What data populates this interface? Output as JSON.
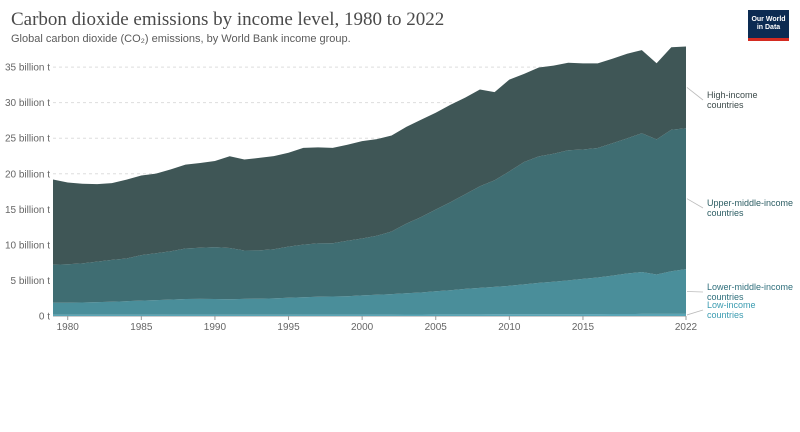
{
  "header": {
    "title": "Carbon dioxide emissions by income level, 1980 to 2022",
    "subtitle": "Global carbon dioxide (CO₂) emissions, by World Bank income group.",
    "logo_text": "Our World in Data",
    "logo_colors": {
      "background": "#0c2b52",
      "accent": "#d42b21"
    }
  },
  "chart_data": {
    "type": "area",
    "stacked": true,
    "x_range": [
      1979,
      2022
    ],
    "x_tick_labels": [
      "1980",
      "1985",
      "1990",
      "1995",
      "2000",
      "2005",
      "2010",
      "2015",
      "2022"
    ],
    "y_range": [
      0,
      36000000000
    ],
    "y_tick_labels": [
      "0 t",
      "5 billion t",
      "10 billion t",
      "15 billion t",
      "20 billion t",
      "25 billion t",
      "30 billion t",
      "35 billion t"
    ],
    "grid": "horizontal dashed",
    "legend": "labels at right end of series",
    "years": [
      1979,
      1980,
      1981,
      1982,
      1983,
      1984,
      1985,
      1986,
      1987,
      1988,
      1989,
      1990,
      1991,
      1992,
      1993,
      1994,
      1995,
      1996,
      1997,
      1998,
      1999,
      2000,
      2001,
      2002,
      2003,
      2004,
      2005,
      2006,
      2007,
      2008,
      2009,
      2010,
      2011,
      2012,
      2013,
      2014,
      2015,
      2016,
      2017,
      2018,
      2019,
      2020,
      2021,
      2022
    ],
    "series": [
      {
        "name": "Low-income countries",
        "color": "#5aa5b6",
        "label_color": "#3a9bb0",
        "values": [
          0.17,
          0.17,
          0.17,
          0.17,
          0.17,
          0.18,
          0.18,
          0.18,
          0.19,
          0.19,
          0.19,
          0.19,
          0.18,
          0.18,
          0.18,
          0.18,
          0.18,
          0.19,
          0.19,
          0.19,
          0.19,
          0.2,
          0.2,
          0.2,
          0.21,
          0.21,
          0.22,
          0.22,
          0.23,
          0.23,
          0.24,
          0.24,
          0.25,
          0.25,
          0.26,
          0.26,
          0.27,
          0.27,
          0.28,
          0.28,
          0.29,
          0.29,
          0.3,
          0.3
        ]
      },
      {
        "name": "Lower-middle-income countries",
        "color": "#4a8e9a",
        "label_color": "#2f6f7c",
        "values": [
          1.68,
          1.7,
          1.73,
          1.78,
          1.82,
          1.9,
          1.98,
          2.05,
          2.12,
          2.2,
          2.22,
          2.2,
          2.18,
          2.23,
          2.25,
          2.3,
          2.38,
          2.45,
          2.52,
          2.55,
          2.6,
          2.7,
          2.78,
          2.88,
          2.98,
          3.1,
          3.25,
          3.4,
          3.58,
          3.72,
          3.85,
          4.0,
          4.2,
          4.4,
          4.55,
          4.75,
          4.95,
          5.15,
          5.4,
          5.7,
          5.9,
          5.55,
          6.0,
          6.3
        ]
      },
      {
        "name": "Upper-middle-income countries",
        "color": "#3f6d72",
        "label_color": "#2c5d63",
        "values": [
          5.35,
          5.4,
          5.5,
          5.7,
          5.9,
          6.0,
          6.4,
          6.6,
          6.8,
          7.1,
          7.2,
          7.3,
          7.2,
          6.8,
          6.8,
          6.9,
          7.2,
          7.4,
          7.5,
          7.5,
          7.8,
          8.0,
          8.3,
          8.8,
          9.8,
          10.6,
          11.5,
          12.4,
          13.3,
          14.3,
          15.0,
          16.1,
          17.2,
          17.8,
          18.0,
          18.3,
          18.2,
          18.2,
          18.6,
          19.0,
          19.5,
          19.0,
          19.9,
          19.8
        ]
      },
      {
        "name": "High-income countries",
        "color": "#3f5656",
        "label_color": "#3c4a4a",
        "values": [
          12.0,
          11.5,
          11.2,
          10.9,
          10.8,
          11.1,
          11.2,
          11.2,
          11.5,
          11.8,
          11.9,
          12.1,
          12.9,
          12.8,
          13.0,
          13.1,
          13.2,
          13.6,
          13.5,
          13.4,
          13.5,
          13.7,
          13.6,
          13.5,
          13.6,
          13.7,
          13.6,
          13.7,
          13.6,
          13.6,
          12.4,
          12.9,
          12.4,
          12.5,
          12.4,
          12.3,
          12.1,
          11.9,
          11.9,
          11.9,
          11.7,
          10.7,
          11.6,
          11.5
        ]
      }
    ]
  }
}
